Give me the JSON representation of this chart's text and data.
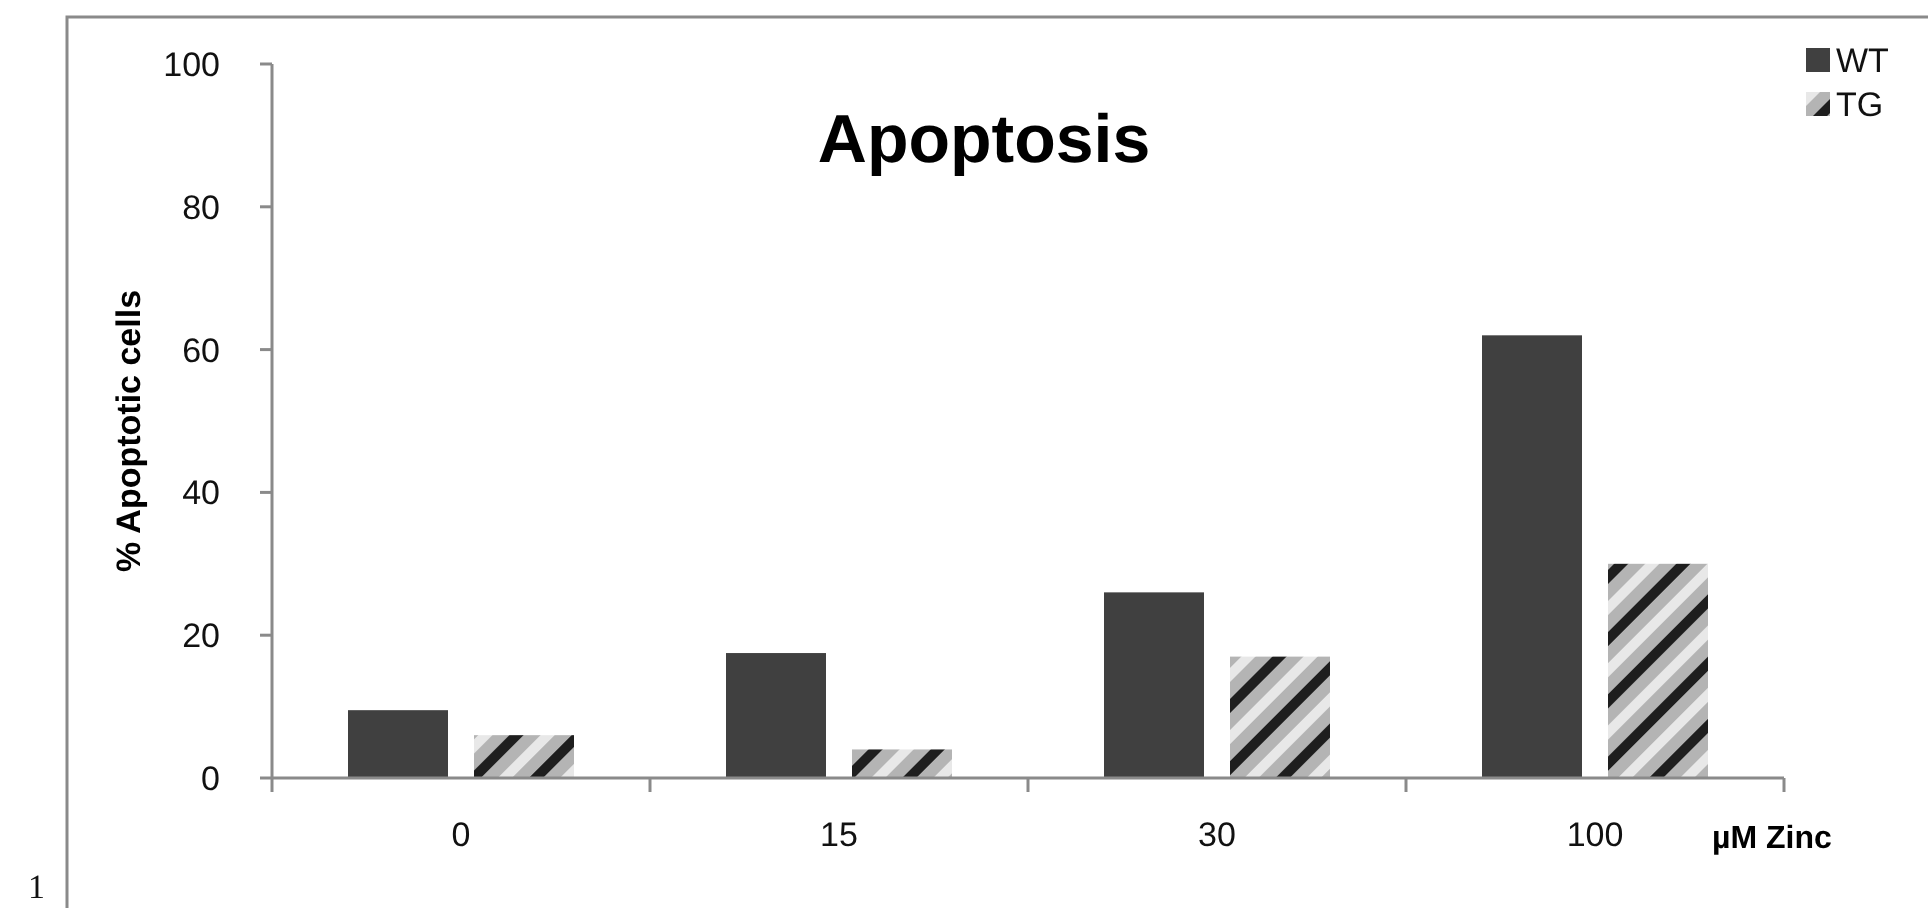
{
  "chart_data": {
    "type": "bar",
    "title": "Apoptosis",
    "xlabel": "µM Zinc",
    "ylabel": "% Apoptotic cells",
    "categories": [
      "0",
      "15",
      "30",
      "100"
    ],
    "series": [
      {
        "name": "WT",
        "color": "#404040",
        "values": [
          9.5,
          17.5,
          26,
          62
        ]
      },
      {
        "name": "TG",
        "color": "#b4b4b4",
        "values": [
          6,
          4,
          17,
          30
        ]
      }
    ],
    "ylim": [
      0,
      100
    ],
    "yticks": [
      0,
      20,
      40,
      60,
      80,
      100
    ],
    "grid": false,
    "legend": "top right",
    "annotations": [
      "1"
    ]
  }
}
